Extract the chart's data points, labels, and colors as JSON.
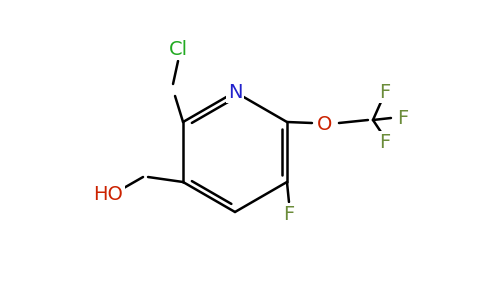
{
  "background_color": "#ffffff",
  "bond_color": "#000000",
  "bond_width": 1.8,
  "font_size": 14,
  "figsize": [
    4.84,
    3.0
  ],
  "dpi": 100,
  "colors": {
    "N": "#2222cc",
    "O": "#cc2200",
    "F": "#6b8c3a",
    "Cl": "#22aa22",
    "C": "#000000"
  }
}
